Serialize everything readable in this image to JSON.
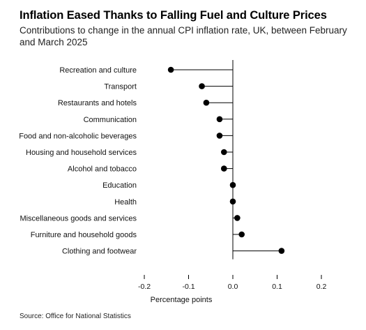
{
  "title": "Inflation Eased Thanks to Falling Fuel and Culture Prices",
  "subtitle": "Contributions to change in the annual CPI inflation rate, UK, between February and March 2025",
  "source": "Source: Office for National Statistics",
  "chart_data": {
    "type": "scatter",
    "title": "Inflation Eased Thanks to Falling Fuel and Culture Prices",
    "subtitle": "Contributions to change in the annual CPI inflation rate, UK, between February and March 2025",
    "xlabel": "Percentage points",
    "ylabel": "",
    "xlim": [
      -0.2,
      0.2
    ],
    "xticks": [
      -0.2,
      -0.1,
      0.0,
      0.1,
      0.2
    ],
    "xtick_labels": [
      "-0.2",
      "-0.1",
      "0.0",
      "0.1",
      "0.2"
    ],
    "grid": false,
    "style": "lollipop",
    "categories": [
      "Recreation and culture",
      "Transport",
      "Restaurants and hotels",
      "Communication",
      "Food and non-alcoholic beverages",
      "Housing and household services",
      "Alcohol and tobacco",
      "Education",
      "Health",
      "Miscellaneous goods and services",
      "Furniture and household goods",
      "Clothing and footwear"
    ],
    "values": [
      -0.14,
      -0.07,
      -0.06,
      -0.03,
      -0.03,
      -0.02,
      -0.02,
      0.0,
      0.0,
      0.01,
      0.02,
      0.11
    ]
  }
}
